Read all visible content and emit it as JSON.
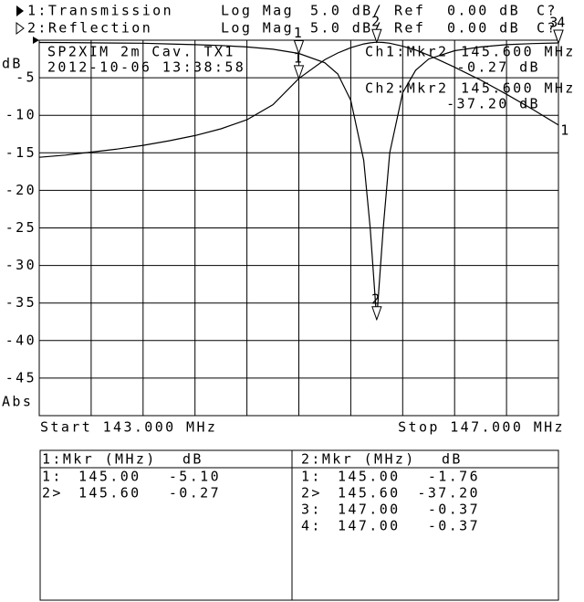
{
  "header": {
    "rows": [
      {
        "trace": "1:Transmission",
        "format": "Log Mag",
        "scale": "5.0 dB/",
        "ref_label": "Ref",
        "ref": "0.00 dB",
        "cal": "C?"
      },
      {
        "trace": "2:Reflection",
        "format": "Log Mag",
        "scale": "5.0 dB/",
        "ref_label": "Ref",
        "ref": "0.00 dB",
        "cal": "C?"
      }
    ]
  },
  "chart_data": {
    "type": "line",
    "title": "SP2XIM 2m Cav. TX1",
    "subtitle": "2012-10-06 13:38:58",
    "y_label_top": "dB",
    "y_label_bottom": "Abs",
    "start_label": "Start 143.000 MHz",
    "stop_label": "Stop 147.000 MHz",
    "annotations": [
      {
        "label": "Ch1:Mkr2",
        "freq": "145.600 MHz",
        "value": "-0.27 dB"
      },
      {
        "label": "Ch2:Mkr2",
        "freq": "145.600 MHz",
        "value": "-37.20 dB"
      }
    ],
    "xlim": [
      143,
      147
    ],
    "ylim": [
      -50,
      0
    ],
    "yticks": [
      -5,
      -10,
      -15,
      -20,
      -25,
      -30,
      -35,
      -40,
      -45
    ],
    "grid": true,
    "x": [
      143.0,
      143.2,
      143.4,
      143.6,
      143.8,
      144.0,
      144.2,
      144.4,
      144.6,
      144.8,
      145.0,
      145.2,
      145.3,
      145.4,
      145.5,
      145.55,
      145.6,
      145.65,
      145.7,
      145.8,
      145.9,
      146.0,
      146.2,
      146.4,
      146.6,
      146.8,
      147.0
    ],
    "series": [
      {
        "name": "1",
        "color": "#000000",
        "values": [
          -15.6,
          -15.3,
          -14.9,
          -14.5,
          -14.0,
          -13.4,
          -12.7,
          -11.8,
          -10.6,
          -8.6,
          -5.1,
          -2.6,
          -1.7,
          -1.0,
          -0.5,
          -0.35,
          -0.27,
          -0.3,
          -0.4,
          -0.8,
          -1.3,
          -2.0,
          -3.6,
          -5.3,
          -7.2,
          -9.2,
          -11.3
        ],
        "markers": {
          "labels": [
            "1",
            "2"
          ],
          "x": [
            145.0,
            145.6
          ],
          "values": [
            -5.1,
            -0.27
          ]
        }
      },
      {
        "name": "2",
        "color": "#000000",
        "values": [
          -0.3,
          -0.32,
          -0.35,
          -0.38,
          -0.4,
          -0.5,
          -0.6,
          -0.7,
          -0.9,
          -1.2,
          -1.76,
          -3.0,
          -4.5,
          -8.0,
          -16.0,
          -25.0,
          -37.2,
          -25.0,
          -15.0,
          -7.0,
          -4.0,
          -2.5,
          -1.4,
          -0.9,
          -0.6,
          -0.45,
          -0.37
        ],
        "markers": {
          "labels": [
            "1",
            "2",
            "3",
            "4"
          ],
          "x": [
            145.0,
            145.6,
            147.0,
            147.0
          ],
          "values": [
            -1.76,
            -37.2,
            -0.37,
            -0.37
          ]
        }
      }
    ]
  },
  "marker_tables": [
    {
      "title": "1:Mkr (MHz)",
      "unit": "dB",
      "rows": [
        [
          "1:",
          "145.00",
          "-5.10"
        ],
        [
          "2>",
          "145.60",
          "-0.27"
        ]
      ]
    },
    {
      "title": "2:Mkr (MHz)",
      "unit": "dB",
      "rows": [
        [
          "1:",
          "145.00",
          "-1.76"
        ],
        [
          "2>",
          "145.60",
          "-37.20"
        ],
        [
          "3:",
          "147.00",
          "-0.37"
        ],
        [
          "4:",
          "147.00",
          "-0.37"
        ]
      ]
    }
  ]
}
